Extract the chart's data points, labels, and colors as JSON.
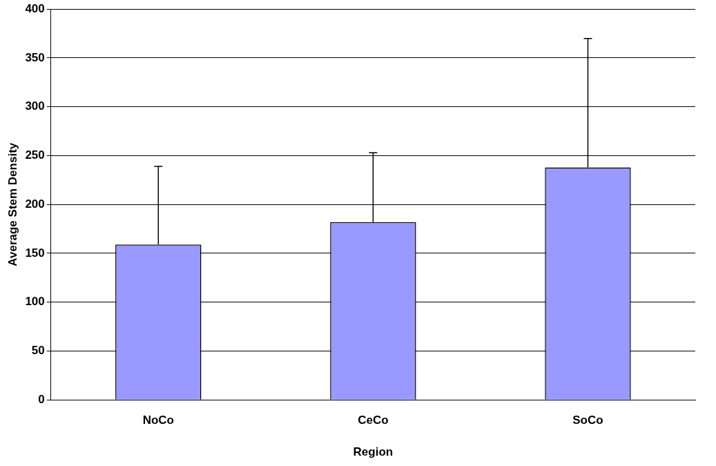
{
  "chart_data": {
    "type": "bar",
    "xlabel": "Region",
    "ylabel": "Average Stem Density",
    "categories": [
      "NoCo",
      "CeCo",
      "SoCo"
    ],
    "series": [
      {
        "color": "#9999ff",
        "values": [
          159,
          182,
          238
        ],
        "errors": [
          [
            159,
            239
          ],
          [
            182,
            253
          ],
          [
            238,
            370
          ]
        ]
      }
    ],
    "ylim": [
      0,
      400
    ],
    "yticks": [
      0,
      50,
      100,
      150,
      200,
      250,
      300,
      350,
      400
    ],
    "grid": "y",
    "legend": false
  }
}
